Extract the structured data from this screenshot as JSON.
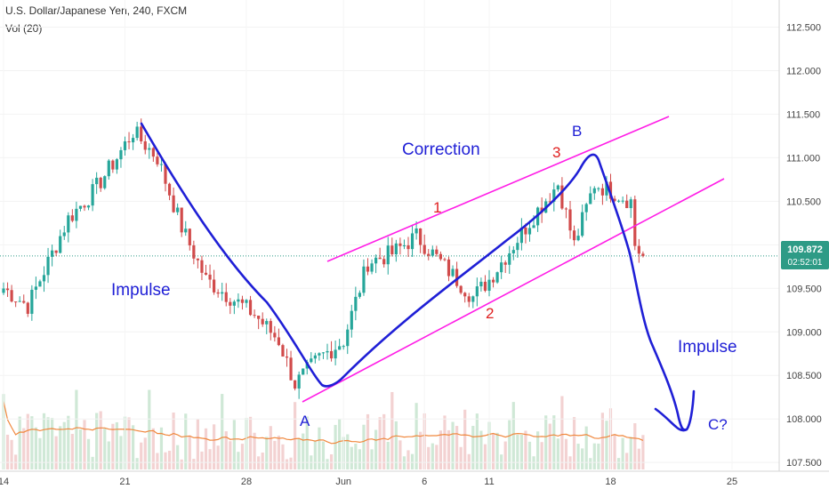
{
  "header": {
    "title": "U.S. Dollar/Japanese Yen, 240, FXCM",
    "indicator": "Vol (20)"
  },
  "colors": {
    "bull": "#26a69a",
    "bear": "#d14b4b",
    "vol_bull": "#cfe8d6",
    "vol_bear": "#f3d2d2",
    "ma": "#f0883e",
    "wave": "#1f1fd6",
    "channel": "#ff1ee6",
    "label_red": "#e02020",
    "label_blue": "#1f1fd6",
    "price_tag": "#2e9b86",
    "dotted": "#2e9b86"
  },
  "price_tag": {
    "price": "109.872",
    "countdown": "02:52:01"
  },
  "chart_data": {
    "type": "candlestick",
    "y_ticks": [
      "112.500",
      "112.000",
      "111.500",
      "111.000",
      "110.500",
      "110.000",
      "109.500",
      "109.000",
      "108.500",
      "108.000",
      "107.500"
    ],
    "ylim": [
      107.42,
      112.75
    ],
    "x_ticks": [
      "14",
      "21",
      "28",
      "Jun",
      "6",
      "11",
      "18",
      "25"
    ],
    "x_tick_index": [
      0,
      30,
      60,
      84,
      104,
      120,
      150,
      180
    ],
    "last_price": 109.872,
    "anchors": [
      [
        0,
        109.5
      ],
      [
        6,
        109.3
      ],
      [
        10,
        109.7
      ],
      [
        16,
        110.3
      ],
      [
        22,
        110.6
      ],
      [
        28,
        111.0
      ],
      [
        32,
        111.3
      ],
      [
        38,
        111.0
      ],
      [
        44,
        110.2
      ],
      [
        50,
        109.6
      ],
      [
        56,
        109.4
      ],
      [
        62,
        109.2
      ],
      [
        68,
        108.9
      ],
      [
        72,
        108.4
      ],
      [
        78,
        108.7
      ],
      [
        84,
        108.9
      ],
      [
        90,
        109.8
      ],
      [
        96,
        109.9
      ],
      [
        102,
        110.1
      ],
      [
        106,
        109.9
      ],
      [
        110,
        109.7
      ],
      [
        116,
        109.4
      ],
      [
        120,
        109.6
      ],
      [
        126,
        110.0
      ],
      [
        132,
        110.4
      ],
      [
        137,
        110.7
      ],
      [
        141,
        110.0
      ],
      [
        146,
        110.7
      ],
      [
        151,
        110.6
      ],
      [
        155,
        110.5
      ],
      [
        156,
        110.0
      ],
      [
        158,
        109.85
      ]
    ],
    "annotations": {
      "correction": "Correction",
      "impulse_left": "Impulse",
      "impulse_right": "Impulse",
      "wave_a": "A",
      "wave_b": "B",
      "wave_c": "C?",
      "wave_1": "1",
      "wave_2": "2",
      "wave_3": "3"
    }
  }
}
